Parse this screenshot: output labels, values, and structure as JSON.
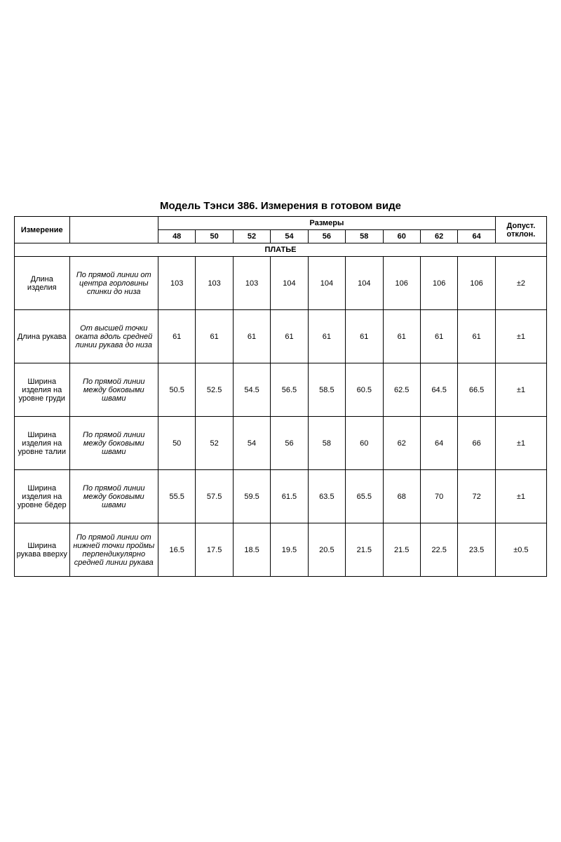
{
  "title": "Модель Тэнси 386. Измерения в готовом виде",
  "headers": {
    "measure": "Измерение",
    "sizes_label": "Размеры",
    "tolerance": "Допуст. отклон.",
    "sizes": [
      "48",
      "50",
      "52",
      "54",
      "56",
      "58",
      "60",
      "62",
      "64"
    ]
  },
  "section": "ПЛАТЬЕ",
  "rows": [
    {
      "name": "Длина изделия",
      "desc": "По прямой линии от центра горловины спинки до низа",
      "values": [
        "103",
        "103",
        "103",
        "104",
        "104",
        "104",
        "106",
        "106",
        "106"
      ],
      "tol": "±2"
    },
    {
      "name": "Длина рукава",
      "desc": "От высшей точки оката вдоль средней линии рукава до низа",
      "values": [
        "61",
        "61",
        "61",
        "61",
        "61",
        "61",
        "61",
        "61",
        "61"
      ],
      "tol": "±1"
    },
    {
      "name": "Ширина изделия на уровне груди",
      "desc": "По прямой линии между боковыми швами",
      "values": [
        "50.5",
        "52.5",
        "54.5",
        "56.5",
        "58.5",
        "60.5",
        "62.5",
        "64.5",
        "66.5"
      ],
      "tol": "±1"
    },
    {
      "name": "Ширина изделия на уровне талии",
      "desc": "По прямой линии между боковыми швами",
      "values": [
        "50",
        "52",
        "54",
        "56",
        "58",
        "60",
        "62",
        "64",
        "66"
      ],
      "tol": "±1"
    },
    {
      "name": "Ширина изделия на уровне бёдер",
      "desc": "По прямой линии между боковыми швами",
      "values": [
        "55.5",
        "57.5",
        "59.5",
        "61.5",
        "63.5",
        "65.5",
        "68",
        "70",
        "72"
      ],
      "tol": "±1"
    },
    {
      "name": "Ширина рукава вверху",
      "desc": "По прямой линии от нижней точки проймы перпендикулярно средней линии рукава",
      "values": [
        "16.5",
        "17.5",
        "18.5",
        "19.5",
        "20.5",
        "21.5",
        "21.5",
        "22.5",
        "23.5"
      ],
      "tol": "±0.5"
    }
  ],
  "styling": {
    "background_color": "#ffffff",
    "border_color": "#000000",
    "text_color": "#000000",
    "title_fontsize": 15,
    "cell_fontsize": 11,
    "font_family": "Arial"
  }
}
